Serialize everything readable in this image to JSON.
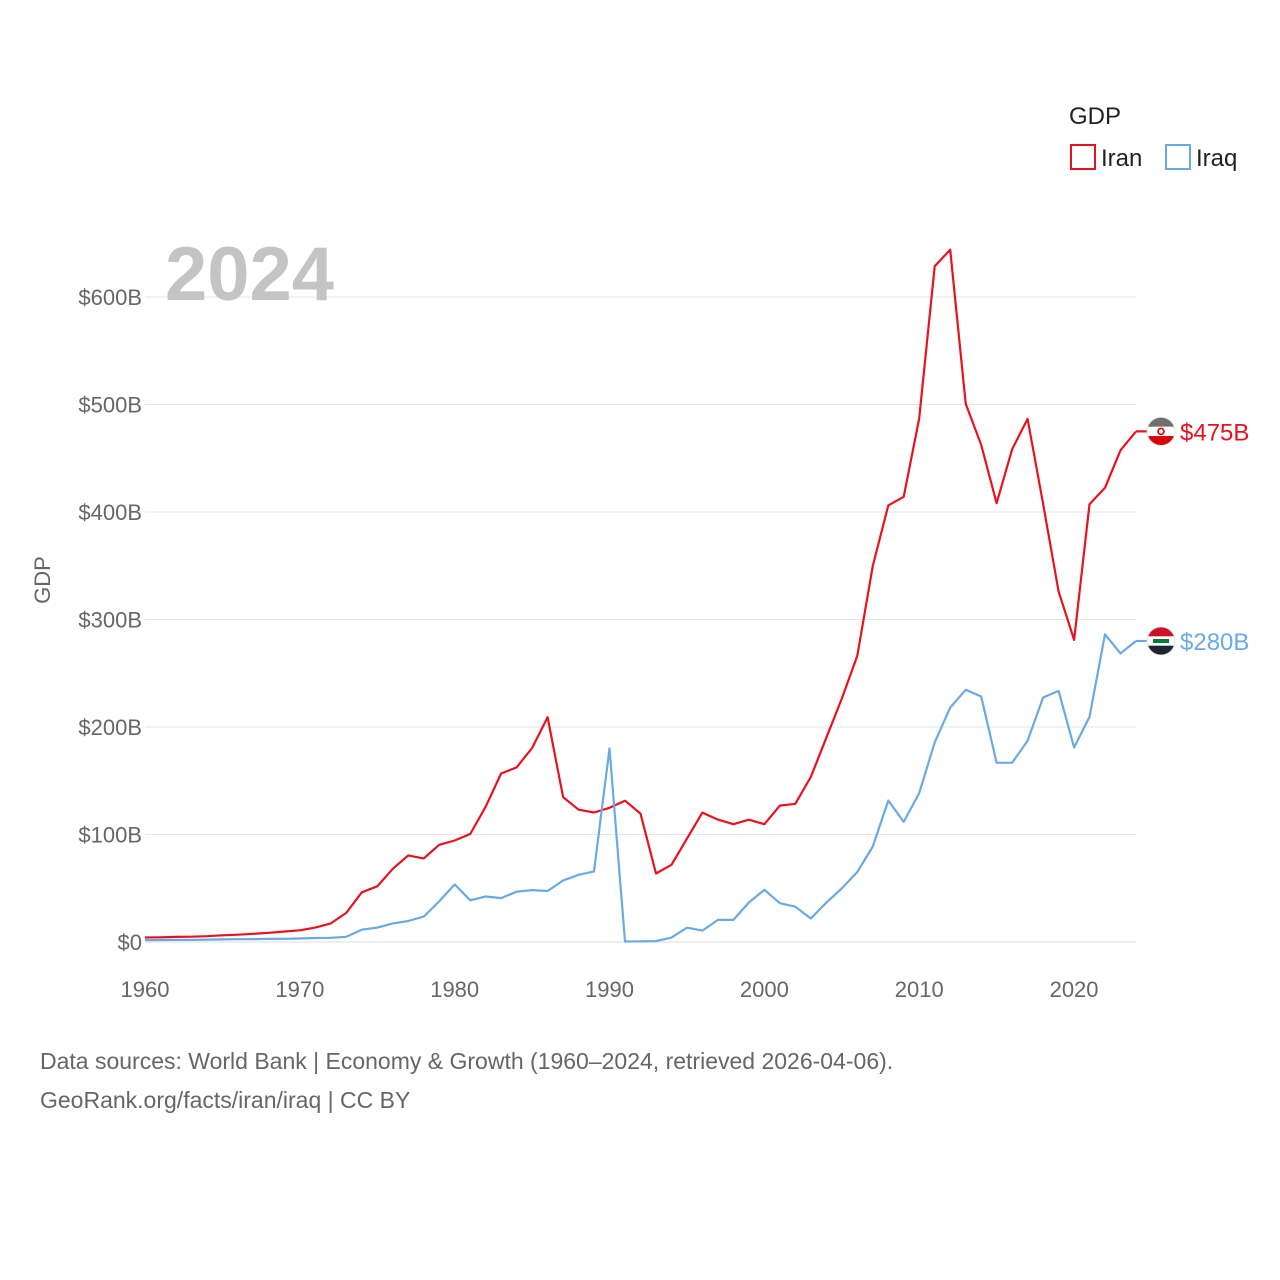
{
  "chart_data": {
    "type": "line",
    "year_overlay": "2024",
    "ylabel": "GDP",
    "legend_title": "GDP",
    "ylim": [
      0,
      650
    ],
    "xlim": [
      1960,
      2024
    ],
    "yticks": [
      0,
      100,
      200,
      300,
      400,
      500,
      600
    ],
    "ytick_labels": [
      "$0",
      "$100B",
      "$200B",
      "$300B",
      "$400B",
      "$500B",
      "$600B"
    ],
    "xticks": [
      1960,
      1970,
      1980,
      1990,
      2000,
      2010,
      2020
    ],
    "xtick_labels": [
      "1960",
      "1970",
      "1980",
      "1990",
      "2000",
      "2010",
      "2020"
    ],
    "x": [
      1960,
      1961,
      1962,
      1963,
      1964,
      1965,
      1966,
      1967,
      1968,
      1969,
      1970,
      1971,
      1972,
      1973,
      1974,
      1975,
      1976,
      1977,
      1978,
      1979,
      1980,
      1981,
      1982,
      1983,
      1984,
      1985,
      1986,
      1987,
      1988,
      1989,
      1990,
      1991,
      1992,
      1993,
      1994,
      1995,
      1996,
      1997,
      1998,
      1999,
      2000,
      2001,
      2002,
      2003,
      2004,
      2005,
      2006,
      2007,
      2008,
      2009,
      2010,
      2011,
      2012,
      2013,
      2014,
      2015,
      2016,
      2017,
      2018,
      2019,
      2020,
      2021,
      2022,
      2023,
      2024
    ],
    "series": [
      {
        "name": "Iran",
        "color": "#e8121f",
        "end_label": "$475B",
        "flag": "iran-flag-icon",
        "values": [
          4.2,
          4.4,
          4.7,
          4.9,
          5.4,
          6.2,
          6.8,
          7.6,
          8.6,
          9.8,
          10.9,
          13.4,
          17.3,
          27.1,
          46.2,
          51.8,
          68.1,
          80.6,
          77.8,
          90.4,
          94.4,
          100.5,
          125.9,
          156.7,
          162.4,
          180.5,
          209.1,
          134.8,
          123.1,
          120.5,
          124.8,
          131.4,
          119.4,
          63.7,
          71.8,
          96.2,
          120.4,
          113.9,
          109.6,
          113.8,
          109.6,
          126.9,
          128.6,
          153.5,
          190.0,
          226.4,
          266.3,
          349.9,
          406.1,
          414.1,
          487.1,
          628.6,
          644.0,
          500.7,
          462.4,
          408.2,
          458.2,
          486.6,
          407.6,
          326.1,
          281.0,
          407.2,
          422.5,
          457.4,
          475.0
        ]
      },
      {
        "name": "Iraq",
        "color": "#6aaae4",
        "end_label": "$280B",
        "flag": "iraq-flag-icon",
        "values": [
          1.7,
          1.9,
          2.0,
          2.0,
          2.2,
          2.4,
          2.6,
          2.6,
          2.9,
          3.0,
          3.3,
          3.7,
          3.9,
          4.8,
          11.4,
          13.4,
          17.3,
          19.5,
          23.6,
          37.8,
          53.6,
          38.8,
          42.3,
          40.8,
          46.8,
          48.3,
          47.4,
          57.2,
          62.5,
          65.7,
          180.0,
          0.5,
          0.6,
          0.8,
          4.1,
          13.3,
          10.6,
          20.6,
          20.6,
          36.7,
          48.6,
          36.1,
          32.8,
          21.9,
          36.6,
          49.9,
          65.1,
          88.8,
          131.6,
          111.7,
          138.5,
          185.7,
          218.0,
          234.6,
          228.4,
          166.8,
          166.7,
          187.2,
          227.4,
          233.6,
          180.9,
          209.4,
          286.2,
          268.5,
          280.0
        ]
      }
    ]
  },
  "source_line_1": "Data sources: World Bank | Economy & Growth (1960–2024, retrieved 2026-04-06).",
  "source_line_2": "GeoRank.org/facts/iran/iraq | CC BY"
}
